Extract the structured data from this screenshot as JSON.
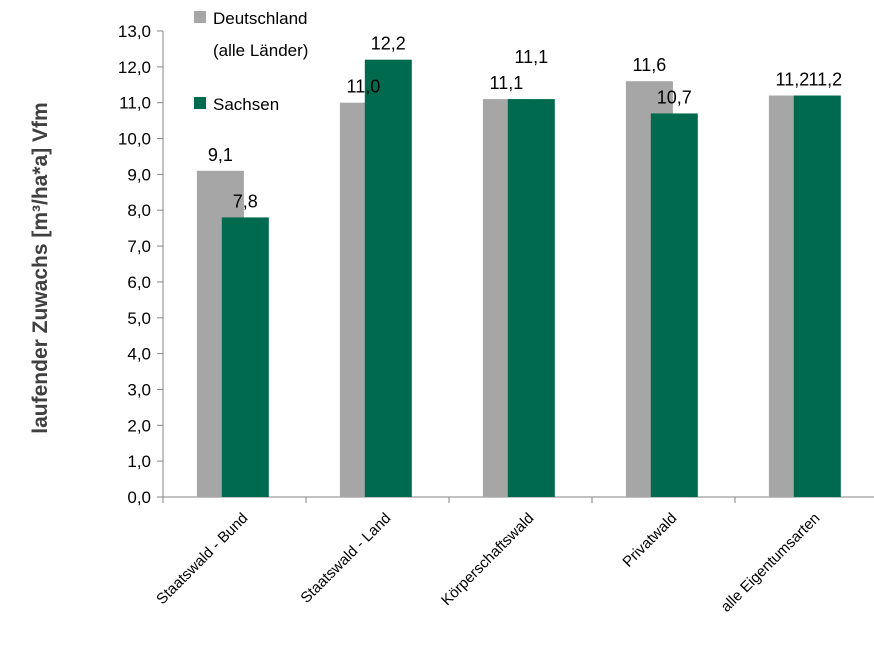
{
  "chart_data": {
    "type": "bar",
    "ylabel": "laufender Zuwachs [m³/ha*a] Vfm",
    "ylim": [
      0,
      13
    ],
    "ytick_step": 1,
    "ytick_labels": [
      "0,0",
      "1,0",
      "2,0",
      "3,0",
      "4,0",
      "5,0",
      "6,0",
      "7,0",
      "8,0",
      "9,0",
      "10,0",
      "11,0",
      "12,0",
      "13,0"
    ],
    "categories": [
      "Staatswald - Bund",
      "Staatswald - Land",
      "Körperschaftswald",
      "Privatwald",
      "alle Eigentumsarten"
    ],
    "series": [
      {
        "name_lines": [
          "Deutschland",
          "(alle Länder)"
        ],
        "color": "#a6a6a6",
        "values": [
          9.1,
          11.0,
          11.1,
          11.6,
          11.2
        ],
        "labels": [
          "9,1",
          "11,0",
          "11,1",
          "11,6",
          "11,2"
        ]
      },
      {
        "name_lines": [
          "Sachsen"
        ],
        "color": "#006a4e",
        "values": [
          7.8,
          12.2,
          11.1,
          10.7,
          11.2
        ],
        "labels": [
          "7,8",
          "12,2",
          "11,1",
          "10,7",
          "11,2"
        ]
      }
    ],
    "legend_position": "top-left inside plot",
    "grid": false
  }
}
